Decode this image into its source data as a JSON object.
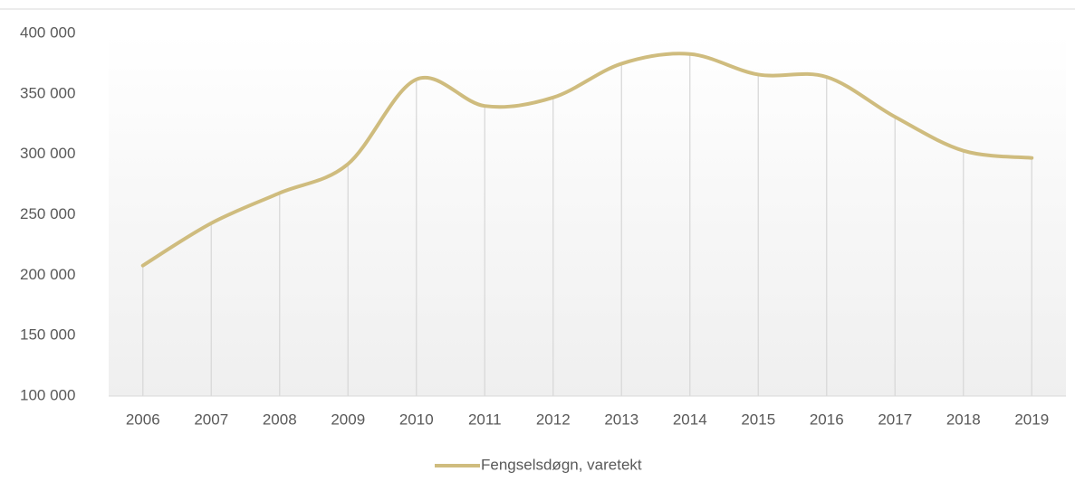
{
  "chart_data": {
    "type": "line",
    "categories": [
      "2006",
      "2007",
      "2008",
      "2009",
      "2010",
      "2011",
      "2012",
      "2013",
      "2014",
      "2015",
      "2016",
      "2017",
      "2018",
      "2019"
    ],
    "series": [
      {
        "name": "Fengselsdøgn, varetekt",
        "color": "#cfbc7e",
        "values": [
          208000,
          243000,
          268000,
          292000,
          362000,
          340000,
          347000,
          375000,
          383000,
          366000,
          364000,
          331000,
          303000,
          297000
        ]
      }
    ],
    "ylim": [
      100000,
      400000
    ],
    "yticks": [
      {
        "value": 100000,
        "label": "100 000"
      },
      {
        "value": 150000,
        "label": "150 000"
      },
      {
        "value": 200000,
        "label": "200 000"
      },
      {
        "value": 250000,
        "label": "250 000"
      },
      {
        "value": 300000,
        "label": "300 000"
      },
      {
        "value": 350000,
        "label": "350 000"
      },
      {
        "value": 400000,
        "label": "400 000"
      }
    ],
    "legend": "bottom",
    "smooth": true,
    "drop_lines": true
  }
}
